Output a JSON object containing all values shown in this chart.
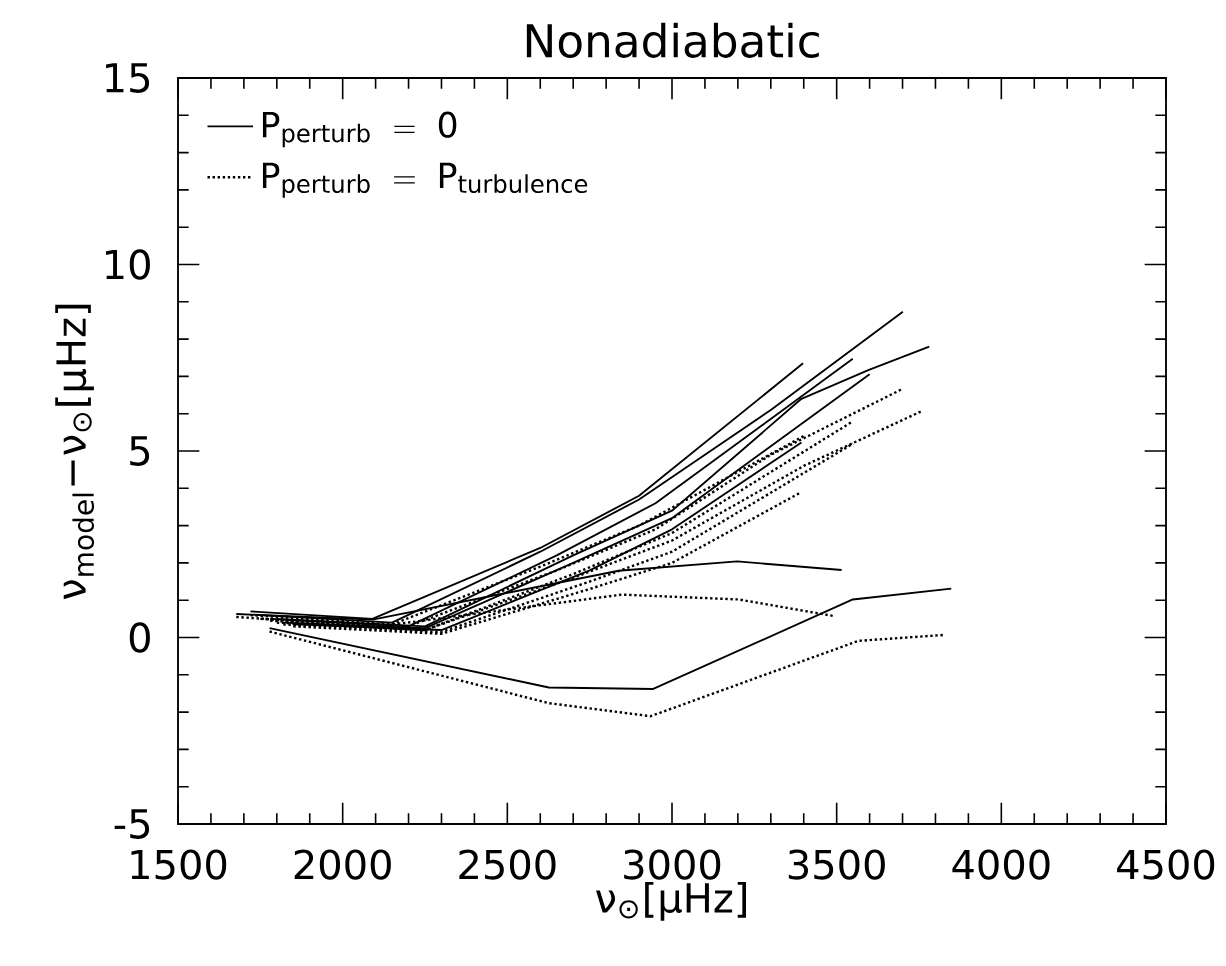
{
  "chart_data": {
    "type": "line",
    "title": "Nonadiabatic",
    "xlabel": "ν$_{⊙}$[μHz]",
    "ylabel": "ν$_{model}$−ν$_{⊙}$[μHz]",
    "xlim": [
      1500,
      4500
    ],
    "ylim": [
      -5,
      15
    ],
    "xticks": [
      1500,
      2000,
      2500,
      3000,
      3500,
      4000,
      4500
    ],
    "yticks": [
      -5,
      0,
      5,
      10,
      15
    ],
    "grid": false,
    "legend": "top left",
    "marker": "none",
    "series": [
      {
        "name": "\\mathrm{P_{perturb}\\ =\\ 0}",
        "color": "#000000",
        "line_style": "solid",
        "x": [
          1720,
          2090,
          2600,
          2900,
          3398
        ],
        "values": [
          0.7,
          0.5,
          2.4,
          3.8,
          7.35
        ]
      },
      {
        "color": "#000000",
        "line_style": "solid",
        "x": [
          1750,
          2150,
          2600,
          2900,
          3300,
          3701
        ],
        "values": [
          0.6,
          0.4,
          2.3,
          3.7,
          6.1,
          8.73
        ]
      },
      {
        "color": "#000000",
        "line_style": "solid",
        "x": [
          1780,
          2200,
          2650,
          2950,
          3549
        ],
        "values": [
          0.5,
          0.3,
          2.2,
          3.6,
          7.47
        ]
      },
      {
        "color": "#000000",
        "line_style": "solid",
        "x": [
          1800,
          2250,
          2700,
          3000,
          3393,
          3596,
          3781
        ],
        "values": [
          0.5,
          0.3,
          2.2,
          3.4,
          6.4,
          7.17,
          7.8
        ]
      },
      {
        "color": "#000000",
        "line_style": "solid",
        "x": [
          1820,
          2250,
          2700,
          3000,
          3600
        ],
        "values": [
          0.4,
          0.25,
          2.0,
          3.2,
          7.06
        ]
      },
      {
        "color": "#000000",
        "line_style": "solid",
        "x": [
          1850,
          2300,
          2750,
          3000,
          3393
        ],
        "values": [
          0.35,
          0.2,
          1.8,
          2.9,
          5.23
        ]
      },
      {
        "color": "#000000",
        "line_style": "solid",
        "x": [
          1677,
          2091,
          2838,
          3198,
          3515
        ],
        "values": [
          0.63,
          0.48,
          1.79,
          2.04,
          1.81
        ]
      },
      {
        "color": "#000000",
        "line_style": "solid",
        "x": [
          1778,
          2626,
          2943,
          3549,
          3848
        ],
        "values": [
          0.25,
          -1.34,
          -1.38,
          1.02,
          1.31
        ]
      },
      {
        "name": "\\mathrm{P_{perturb}\\ =\\ P_{turbulence}}",
        "color": "#000000",
        "line_style": "dotted",
        "x": [
          1720,
          2150,
          2600,
          2900,
          3400
        ],
        "values": [
          0.6,
          0.35,
          1.9,
          3.0,
          5.4
        ]
      },
      {
        "color": "#000000",
        "line_style": "dotted",
        "x": [
          1750,
          2200,
          2650,
          2950,
          3300,
          3701
        ],
        "values": [
          0.5,
          0.3,
          1.8,
          2.9,
          4.9,
          6.67
        ]
      },
      {
        "color": "#000000",
        "line_style": "dotted",
        "x": [
          1780,
          2250,
          2700,
          3000,
          3550
        ],
        "values": [
          0.45,
          0.2,
          1.7,
          2.8,
          5.8
        ]
      },
      {
        "color": "#000000",
        "line_style": "dotted",
        "x": [
          1800,
          2250,
          2700,
          3000,
          3400,
          3761
        ],
        "values": [
          0.4,
          0.2,
          1.6,
          2.6,
          4.6,
          6.08
        ]
      },
      {
        "color": "#000000",
        "line_style": "dotted",
        "x": [
          1820,
          2300,
          2750,
          3000,
          3550
        ],
        "values": [
          0.35,
          0.15,
          1.5,
          2.3,
          5.2
        ]
      },
      {
        "color": "#000000",
        "line_style": "dotted",
        "x": [
          1850,
          2300,
          2750,
          3000,
          3391
        ],
        "values": [
          0.3,
          0.1,
          1.3,
          2.0,
          3.89
        ]
      },
      {
        "color": "#000000",
        "line_style": "dotted",
        "x": [
          1677,
          2111,
          2848,
          3202,
          3495
        ],
        "values": [
          0.55,
          0.3,
          1.15,
          1.02,
          0.57
        ]
      },
      {
        "color": "#000000",
        "line_style": "dotted",
        "x": [
          1778,
          2626,
          2935,
          3566,
          3828
        ],
        "values": [
          0.16,
          -1.76,
          -2.11,
          -0.09,
          0.07
        ]
      }
    ]
  }
}
